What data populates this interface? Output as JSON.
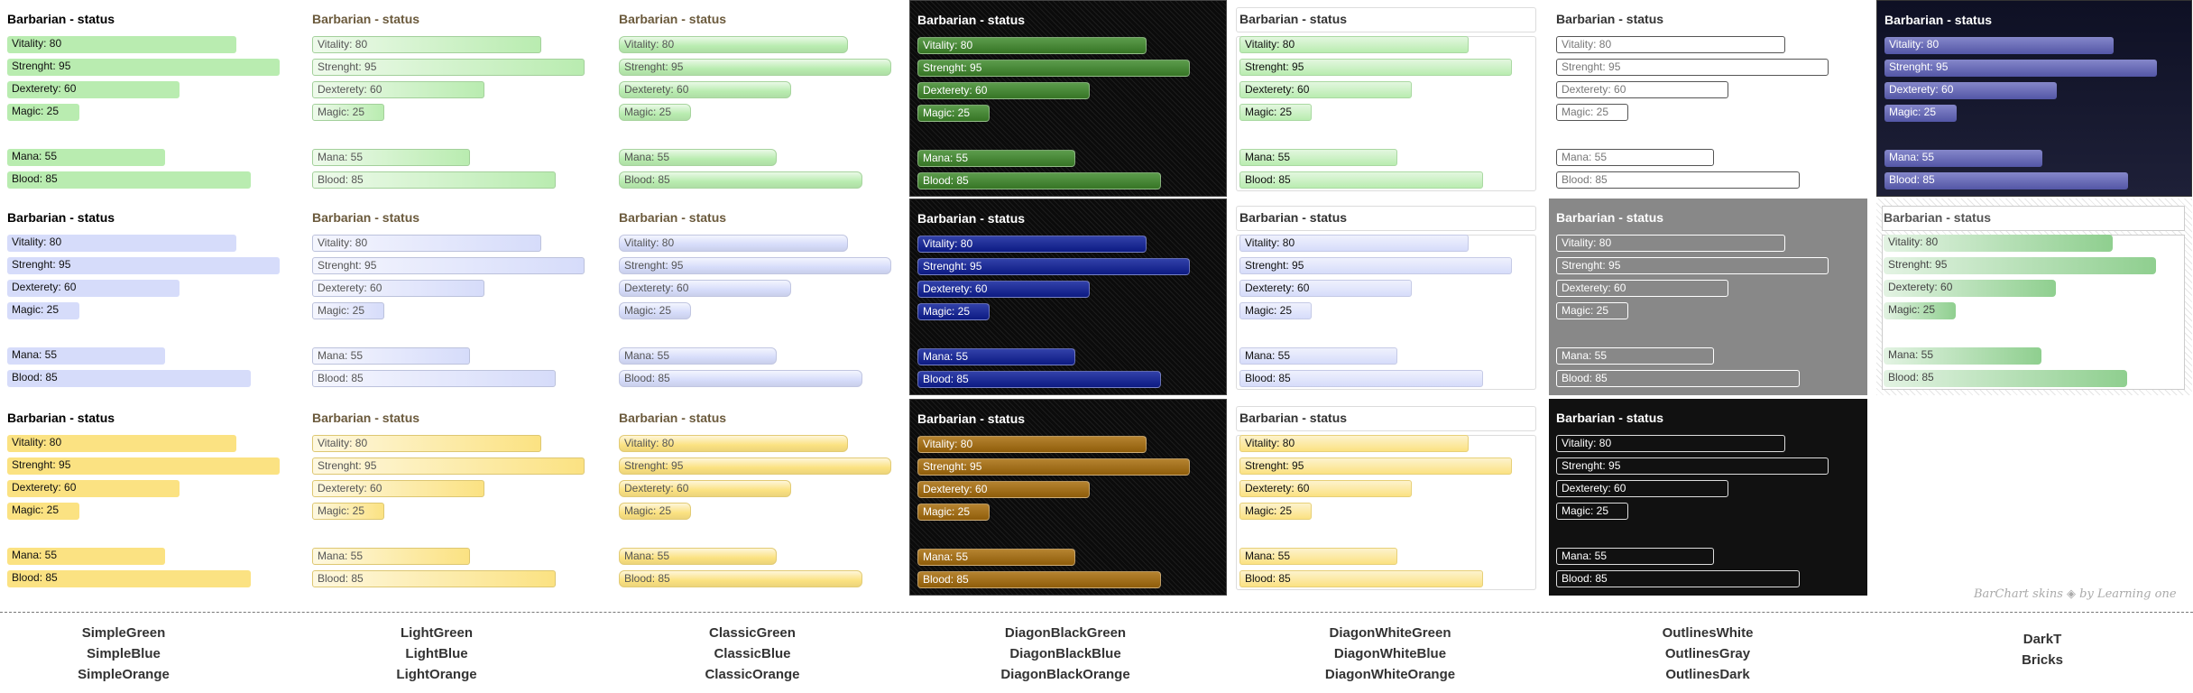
{
  "panel_title": "Barbarian - status",
  "stats": [
    {
      "label": "Vitality: 80",
      "value": 80
    },
    {
      "label": "Strenght: 95",
      "value": 95
    },
    {
      "label": "Dexterety: 60",
      "value": 60
    },
    {
      "label": "Magic: 25",
      "value": 25
    },
    {
      "label": "Mana: 55",
      "value": 55
    },
    {
      "label": "Blood: 85",
      "value": 85
    }
  ],
  "skins": [
    [
      "SimpleGreen",
      "SimpleBlue",
      "SimpleOrange"
    ],
    [
      "LightGreen",
      "LightBlue",
      "LightOrange"
    ],
    [
      "ClassicGreen",
      "ClassicBlue",
      "ClassicOrange"
    ],
    [
      "DiagonBlackGreen",
      "DiagonBlackBlue",
      "DiagonBlackOrange"
    ],
    [
      "DiagonWhiteGreen",
      "DiagonWhiteBlue",
      "DiagonWhiteOrange"
    ],
    [
      "OutlinesWhite",
      "OutlinesGray",
      "OutlinesDark"
    ],
    [
      "DarkT",
      "Bricks"
    ]
  ],
  "colors": {
    "green": "#b9ecb0",
    "blue": "#d6dcfa",
    "orange": "#fbe282",
    "dark_green": "#3f8a2c",
    "dark_blue": "#0e1f9a",
    "dark_orange": "#a86d0c",
    "darkt_bar": "#5c5fb8",
    "bricks_bar": "#8fcf8f"
  },
  "watermark": "BarChart skins ◈ by Learning one"
}
